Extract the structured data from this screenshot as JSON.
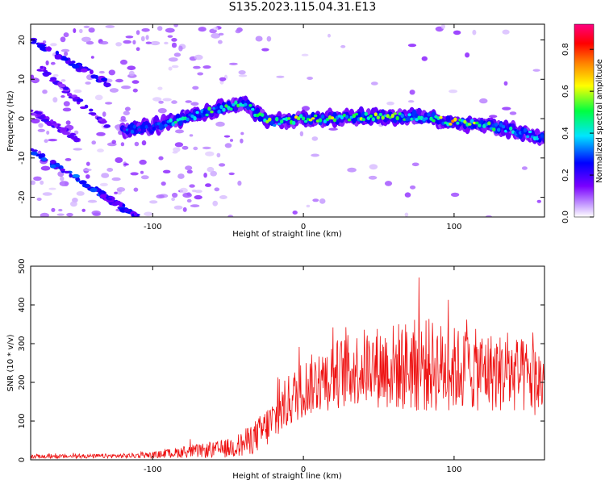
{
  "title": "S135.2023.115.04.31.E13",
  "chart_data": [
    {
      "type": "heatmap",
      "xlabel": "Height of straight line (km)",
      "ylabel": "Frequency (Hz)",
      "xlim": [
        -181,
        160
      ],
      "ylim": [
        -25,
        24
      ],
      "x_ticks": [
        -100,
        0,
        100
      ],
      "y_ticks": [
        -20,
        -10,
        0,
        10,
        20
      ],
      "colorbar": {
        "label": "Normalized spectral amplitude",
        "range": [
          0.0,
          0.92
        ],
        "ticks": [
          0.0,
          0.2,
          0.4,
          0.6,
          0.8
        ],
        "colors": [
          "#ffffff",
          "#7a00ff",
          "#0000ff",
          "#00e5ff",
          "#00ff40",
          "#ffff00",
          "#ff8000",
          "#ff0000",
          "#ff0080"
        ]
      },
      "ridge": {
        "x": [
          -120,
          -100,
          -80,
          -60,
          -40,
          -30,
          -20,
          0,
          20,
          40,
          60,
          80,
          100,
          120,
          140,
          160
        ],
        "y": [
          -3,
          -2,
          0,
          2,
          4,
          1,
          -1,
          0,
          0,
          0.5,
          0.5,
          0.5,
          -1,
          -1.5,
          -3,
          -5
        ],
        "amplitude": [
          0.3,
          0.35,
          0.45,
          0.5,
          0.55,
          0.5,
          0.55,
          0.6,
          0.6,
          0.55,
          0.55,
          0.5,
          0.65,
          0.5,
          0.4,
          0.35
        ]
      },
      "streaks": [
        {
          "x": [
            -181,
            -130
          ],
          "y": [
            20,
            9
          ],
          "amplitude": 0.25
        },
        {
          "x": [
            -175,
            -130
          ],
          "y": [
            13,
            -2
          ],
          "amplitude": 0.2
        },
        {
          "x": [
            -181,
            -130
          ],
          "y": [
            -8,
            -20
          ],
          "amplitude": 0.3
        },
        {
          "x": [
            -135,
            -110
          ],
          "y": [
            -19,
            -25
          ],
          "amplitude": 0.25
        },
        {
          "x": [
            -181,
            -150
          ],
          "y": [
            2,
            -5
          ],
          "amplitude": 0.2
        }
      ],
      "grid": false
    },
    {
      "type": "line",
      "xlabel": "Height of straight line (km)",
      "ylabel": "SNR (10 * v/v)",
      "xlim": [
        -181,
        160
      ],
      "ylim": [
        0,
        500
      ],
      "x_ticks": [
        -100,
        0,
        100
      ],
      "y_ticks": [
        0,
        100,
        200,
        300,
        400,
        500
      ],
      "color": "#ee1111",
      "envelope": {
        "x": [
          -181,
          -120,
          -100,
          -80,
          -60,
          -50,
          -40,
          -30,
          -20,
          -10,
          0,
          20,
          40,
          60,
          80,
          100,
          120,
          140,
          160
        ],
        "mean": [
          8,
          10,
          12,
          20,
          25,
          30,
          40,
          65,
          100,
          150,
          185,
          220,
          240,
          240,
          245,
          235,
          230,
          220,
          200
        ],
        "spread": [
          5,
          6,
          8,
          15,
          20,
          25,
          35,
          45,
          60,
          70,
          75,
          90,
          100,
          115,
          125,
          110,
          105,
          100,
          95
        ]
      },
      "grid": false
    }
  ]
}
